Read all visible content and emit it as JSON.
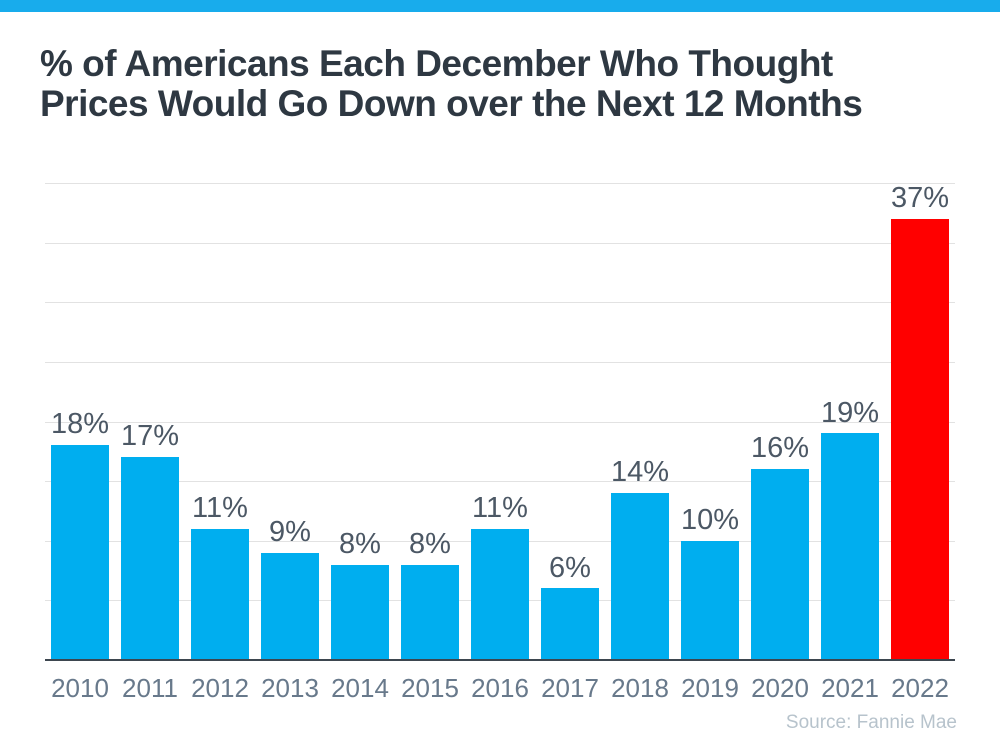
{
  "page": {
    "background": "#FFFFFF",
    "top_strip_color": "#18ACEC"
  },
  "header": {
    "title_line1": "% of Americans Each December Who Thought",
    "title_line2": "Prices Would Go Down over the Next 12 Months",
    "title_color": "#2E3842"
  },
  "source": {
    "label": "Source: Fannie Mae",
    "color": "#B7C3CC"
  },
  "chart_data": {
    "type": "bar",
    "title": "% of Americans Each December Who Thought Prices Would Go Down over the Next 12 Months",
    "categories": [
      "2010",
      "2011",
      "2012",
      "2013",
      "2014",
      "2015",
      "2016",
      "2017",
      "2018",
      "2019",
      "2020",
      "2021",
      "2022"
    ],
    "values": [
      18,
      17,
      11,
      9,
      8,
      8,
      11,
      6,
      14,
      10,
      16,
      19,
      37
    ],
    "value_labels": [
      "18%",
      "17%",
      "11%",
      "9%",
      "8%",
      "8%",
      "11%",
      "6%",
      "14%",
      "10%",
      "16%",
      "19%",
      "37%"
    ],
    "xlabel": "",
    "ylabel": "",
    "ylim": [
      0,
      40
    ],
    "gridline_step": 5,
    "grid": true,
    "legend_position": "none",
    "bar_color": "#00AEEF",
    "highlight_index": 12,
    "highlight_color": "#FF0000",
    "value_label_color": "#4C5865",
    "axis_label_color": "#68798B",
    "gridline_color": "#E2E2E2",
    "baseline_color": "#3D464F"
  }
}
